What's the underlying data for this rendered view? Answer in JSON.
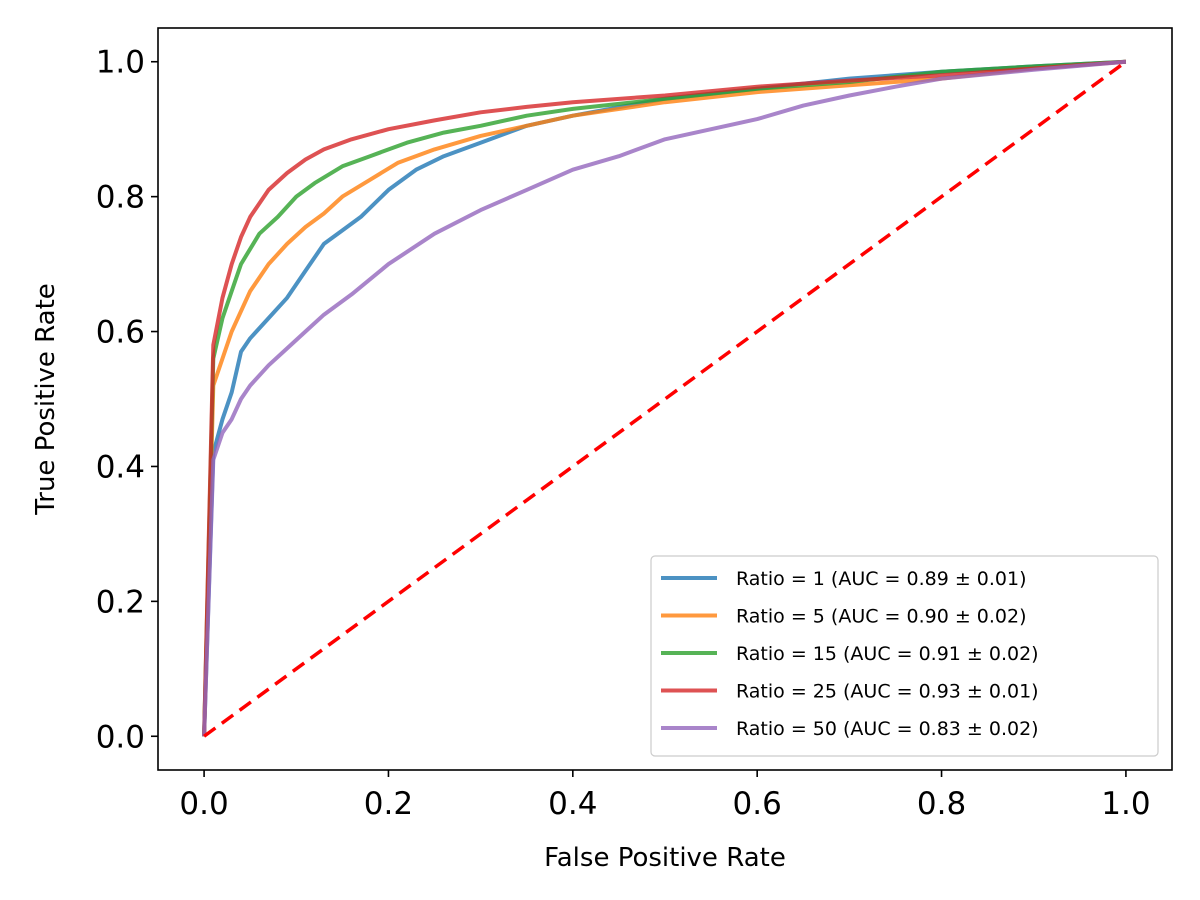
{
  "chart_data": {
    "type": "line",
    "title": "",
    "xlabel": "False Positive Rate",
    "ylabel": "True Positive Rate",
    "xlim": [
      -0.05,
      1.05
    ],
    "ylim": [
      -0.05,
      1.05
    ],
    "xticks": [
      0.0,
      0.2,
      0.4,
      0.6,
      0.8,
      1.0
    ],
    "yticks": [
      0.0,
      0.2,
      0.4,
      0.6,
      0.8,
      1.0
    ],
    "xtick_labels": [
      "0.0",
      "0.2",
      "0.4",
      "0.6",
      "0.8",
      "1.0"
    ],
    "ytick_labels": [
      "0.0",
      "0.2",
      "0.4",
      "0.6",
      "0.8",
      "1.0"
    ],
    "grid": false,
    "legend_position": "lower-right",
    "series": [
      {
        "name": "Ratio = 1 (AUC = 0.89 ± 0.01)",
        "color": "#1f77b4",
        "x": [
          0,
          0.01,
          0.02,
          0.03,
          0.04,
          0.05,
          0.07,
          0.09,
          0.11,
          0.13,
          0.15,
          0.17,
          0.2,
          0.23,
          0.26,
          0.3,
          0.35,
          0.4,
          0.5,
          0.6,
          0.7,
          0.8,
          0.9,
          1.0
        ],
        "y": [
          0,
          0.42,
          0.47,
          0.51,
          0.57,
          0.59,
          0.62,
          0.65,
          0.69,
          0.73,
          0.75,
          0.77,
          0.81,
          0.84,
          0.86,
          0.88,
          0.905,
          0.92,
          0.945,
          0.96,
          0.975,
          0.985,
          0.993,
          1.0
        ]
      },
      {
        "name": "Ratio = 5 (AUC = 0.90 ± 0.02)",
        "color": "#ff7f0e",
        "x": [
          0,
          0.01,
          0.02,
          0.03,
          0.05,
          0.07,
          0.09,
          0.11,
          0.13,
          0.15,
          0.18,
          0.21,
          0.25,
          0.3,
          0.35,
          0.4,
          0.5,
          0.6,
          0.7,
          0.8,
          0.9,
          1.0
        ],
        "y": [
          0,
          0.52,
          0.56,
          0.6,
          0.66,
          0.7,
          0.73,
          0.755,
          0.775,
          0.8,
          0.825,
          0.85,
          0.87,
          0.89,
          0.905,
          0.92,
          0.94,
          0.955,
          0.965,
          0.975,
          0.99,
          1.0
        ]
      },
      {
        "name": "Ratio = 15 (AUC = 0.91 ± 0.02)",
        "color": "#2ca02c",
        "x": [
          0,
          0.01,
          0.02,
          0.03,
          0.04,
          0.06,
          0.08,
          0.1,
          0.12,
          0.15,
          0.18,
          0.22,
          0.26,
          0.3,
          0.35,
          0.4,
          0.5,
          0.6,
          0.7,
          0.8,
          0.9,
          1.0
        ],
        "y": [
          0,
          0.56,
          0.62,
          0.66,
          0.7,
          0.745,
          0.77,
          0.8,
          0.82,
          0.845,
          0.86,
          0.88,
          0.895,
          0.905,
          0.92,
          0.93,
          0.945,
          0.96,
          0.97,
          0.985,
          0.993,
          1.0
        ]
      },
      {
        "name": "Ratio = 25 (AUC = 0.93 ± 0.01)",
        "color": "#d62728",
        "x": [
          0,
          0.01,
          0.02,
          0.03,
          0.04,
          0.05,
          0.07,
          0.09,
          0.11,
          0.13,
          0.16,
          0.2,
          0.25,
          0.3,
          0.35,
          0.4,
          0.5,
          0.6,
          0.7,
          0.8,
          0.9,
          1.0
        ],
        "y": [
          0,
          0.58,
          0.65,
          0.7,
          0.74,
          0.77,
          0.81,
          0.835,
          0.855,
          0.87,
          0.885,
          0.9,
          0.913,
          0.925,
          0.933,
          0.94,
          0.95,
          0.963,
          0.972,
          0.98,
          0.99,
          1.0
        ]
      },
      {
        "name": "Ratio = 50 (AUC = 0.83 ± 0.02)",
        "color": "#9467bd",
        "x": [
          0,
          0.01,
          0.02,
          0.03,
          0.04,
          0.05,
          0.07,
          0.09,
          0.11,
          0.13,
          0.16,
          0.2,
          0.25,
          0.3,
          0.35,
          0.4,
          0.45,
          0.5,
          0.55,
          0.6,
          0.65,
          0.7,
          0.75,
          0.8,
          0.9,
          1.0
        ],
        "y": [
          0,
          0.41,
          0.45,
          0.47,
          0.5,
          0.52,
          0.55,
          0.575,
          0.6,
          0.625,
          0.655,
          0.7,
          0.745,
          0.78,
          0.81,
          0.84,
          0.86,
          0.885,
          0.9,
          0.915,
          0.935,
          0.95,
          0.963,
          0.975,
          0.988,
          1.0
        ]
      }
    ],
    "reference_line": {
      "name": "chance",
      "color": "#ff0000",
      "style": "dashed",
      "x": [
        0,
        1
      ],
      "y": [
        0,
        1
      ]
    }
  }
}
